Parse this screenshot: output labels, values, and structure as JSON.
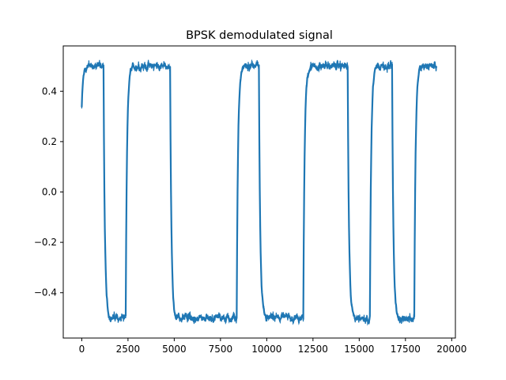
{
  "chart_data": {
    "type": "line",
    "title": "BPSK demodulated signal",
    "xlabel": "",
    "ylabel": "",
    "xlim": [
      -1000,
      20200
    ],
    "ylim": [
      -0.58,
      0.58
    ],
    "grid": false,
    "x_ticks": [
      0,
      2500,
      5000,
      7500,
      10000,
      12500,
      15000,
      17500,
      20000
    ],
    "x_tick_labels": [
      "0",
      "2500",
      "5000",
      "7500",
      "10000",
      "12500",
      "15000",
      "17500",
      "20000"
    ],
    "y_ticks": [
      -0.4,
      -0.2,
      0.0,
      0.2,
      0.4
    ],
    "y_tick_labels": [
      "−0.4",
      "−0.2",
      "0.0",
      "0.2",
      "0.4"
    ],
    "series": [
      {
        "color": "#1f77b4",
        "n_samples": 19200,
        "start_value": 0.26,
        "amplitude": 0.5,
        "noise": 0.012,
        "transitions": [
          {
            "x": 1200,
            "to": -0.5
          },
          {
            "x": 2400,
            "to": 0.5
          },
          {
            "x": 4800,
            "to": -0.5
          },
          {
            "x": 8400,
            "to": 0.5
          },
          {
            "x": 9600,
            "to": -0.5
          },
          {
            "x": 12000,
            "to": 0.5
          },
          {
            "x": 14400,
            "to": -0.5
          },
          {
            "x": 15600,
            "to": 0.5
          },
          {
            "x": 16800,
            "to": -0.5
          },
          {
            "x": 18000,
            "to": 0.5
          }
        ]
      }
    ]
  }
}
